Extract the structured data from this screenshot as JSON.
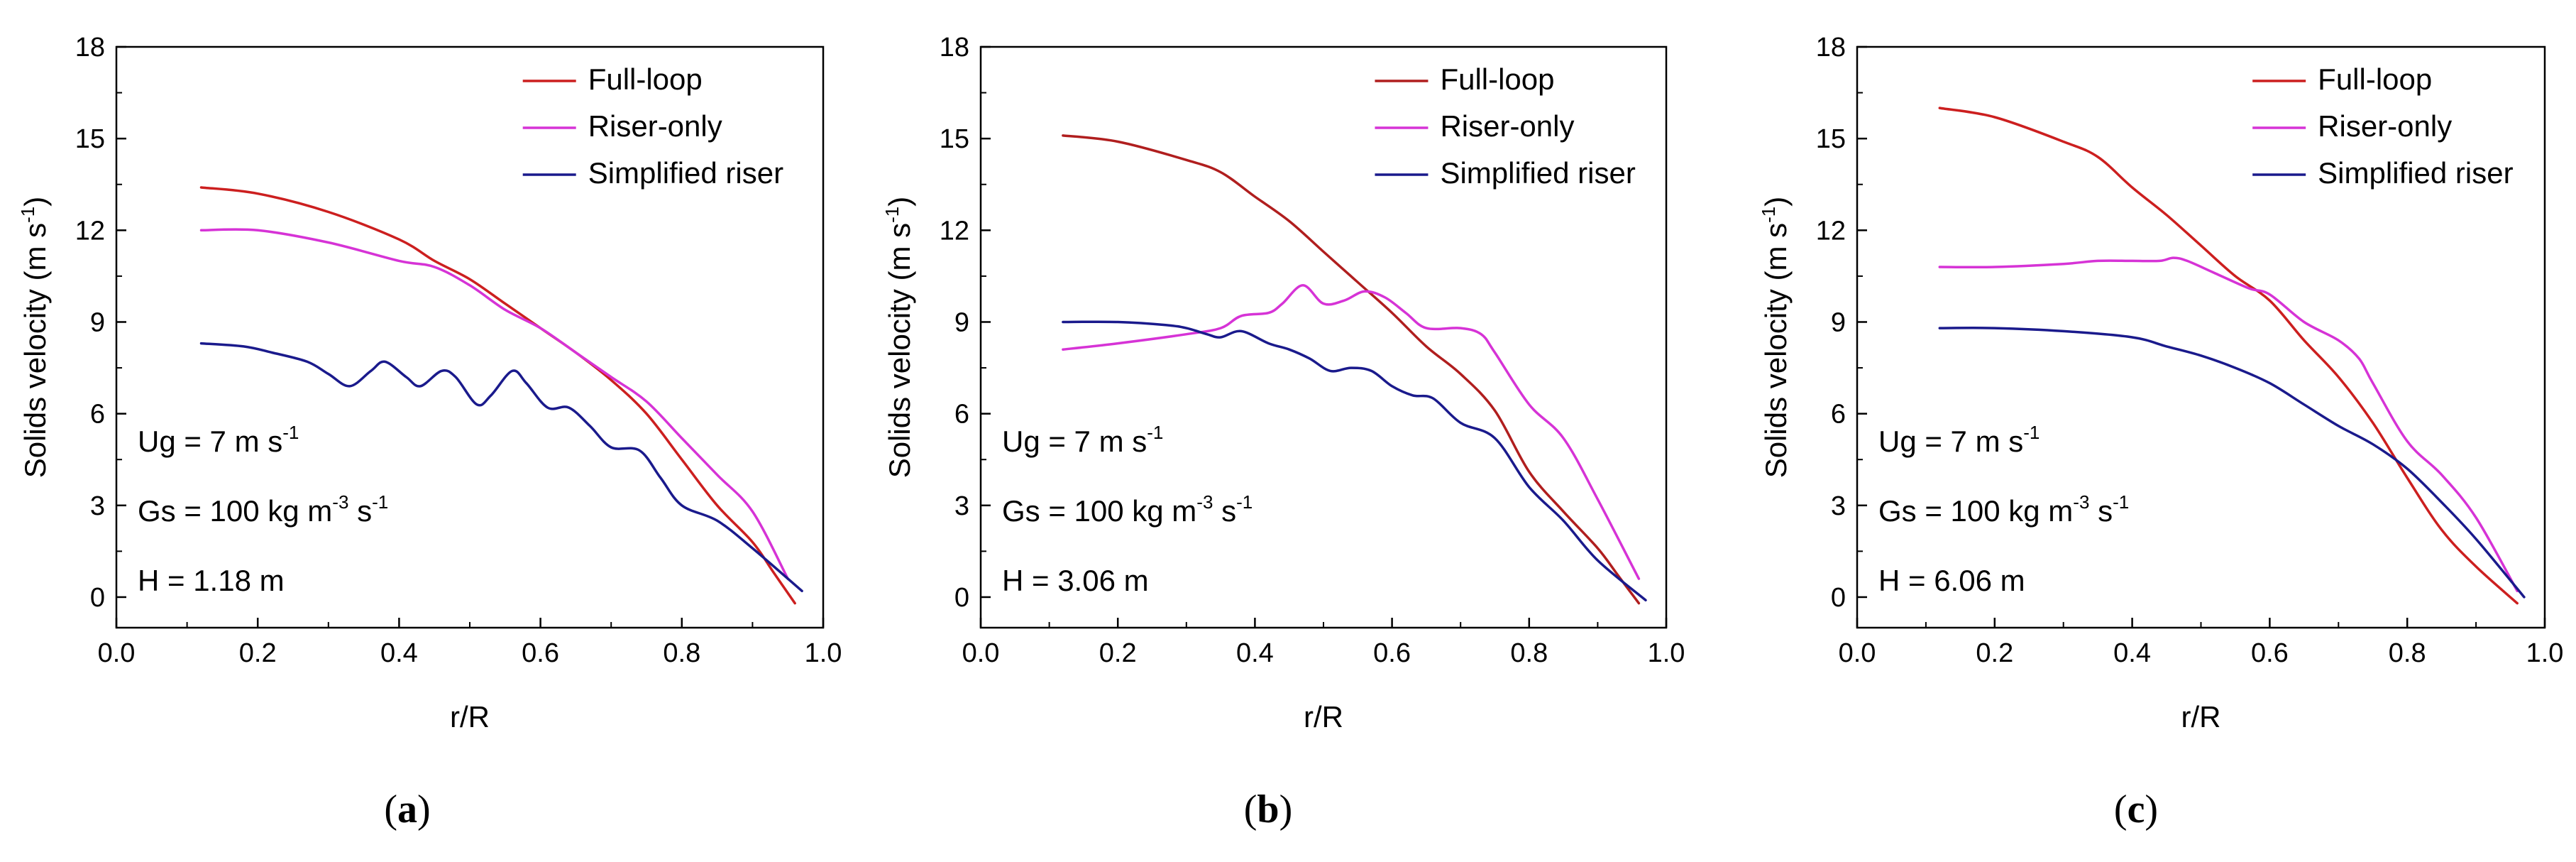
{
  "chart_data": [
    {
      "type": "line",
      "caption": {
        "open": "(",
        "letter": "a",
        "close": ")"
      },
      "xlabel": "r/R",
      "ylabel": {
        "main": "Solids velocity (m s",
        "sup": "-1",
        "close": ")"
      },
      "xlim": [
        0.0,
        1.0
      ],
      "ylim": [
        -1,
        18
      ],
      "xticks": [
        "0.0",
        "0.2",
        "0.4",
        "0.6",
        "0.8",
        "1.0"
      ],
      "yticks": [
        "0",
        "3",
        "6",
        "9",
        "12",
        "15",
        "18"
      ],
      "annotations": [
        {
          "main": "Ug = 7 m s",
          "sup": "-1",
          "rest": ""
        },
        {
          "main": "Gs = 100 kg m",
          "sup": "-3",
          "rest": " s",
          "sup2": "-1"
        },
        {
          "main": "H = 1.18 m",
          "sup": "",
          "rest": ""
        }
      ],
      "series": [
        {
          "name": "Full-loop",
          "color": "#cc1f1f",
          "x": [
            0.12,
            0.2,
            0.3,
            0.4,
            0.45,
            0.5,
            0.55,
            0.6,
            0.65,
            0.7,
            0.75,
            0.8,
            0.85,
            0.9,
            0.93,
            0.96
          ],
          "y": [
            13.4,
            13.2,
            12.6,
            11.7,
            11.0,
            10.4,
            9.6,
            8.8,
            8.0,
            7.1,
            6.0,
            4.5,
            3.0,
            1.8,
            0.8,
            -0.2
          ]
        },
        {
          "name": "Riser-only",
          "color": "#d633d6",
          "x": [
            0.12,
            0.2,
            0.3,
            0.4,
            0.45,
            0.5,
            0.55,
            0.6,
            0.65,
            0.7,
            0.75,
            0.8,
            0.85,
            0.9,
            0.95
          ],
          "y": [
            12.0,
            12.0,
            11.6,
            11.0,
            10.8,
            10.2,
            9.4,
            8.8,
            8.0,
            7.2,
            6.4,
            5.2,
            4.0,
            2.8,
            0.6
          ]
        },
        {
          "name": "Simplified riser",
          "color": "#1a1a8c",
          "x": [
            0.12,
            0.18,
            0.22,
            0.27,
            0.3,
            0.33,
            0.36,
            0.38,
            0.41,
            0.43,
            0.46,
            0.48,
            0.51,
            0.53,
            0.56,
            0.58,
            0.61,
            0.64,
            0.67,
            0.7,
            0.74,
            0.77,
            0.8,
            0.85,
            0.9,
            0.97
          ],
          "y": [
            8.3,
            8.2,
            8.0,
            7.7,
            7.3,
            6.9,
            7.4,
            7.7,
            7.2,
            6.9,
            7.4,
            7.2,
            6.3,
            6.6,
            7.4,
            7.0,
            6.2,
            6.2,
            5.6,
            4.9,
            4.8,
            3.9,
            3.0,
            2.5,
            1.6,
            0.2
          ]
        }
      ]
    },
    {
      "type": "line",
      "caption": {
        "open": "(",
        "letter": "b",
        "close": ")"
      },
      "xlabel": "r/R",
      "ylabel": {
        "main": "Solids velocity (m s",
        "sup": "-1",
        "close": ")"
      },
      "xlim": [
        0.0,
        1.0
      ],
      "ylim": [
        -1,
        18
      ],
      "xticks": [
        "0.0",
        "0.2",
        "0.4",
        "0.6",
        "0.8",
        "1.0"
      ],
      "yticks": [
        "0",
        "3",
        "6",
        "9",
        "12",
        "15",
        "18"
      ],
      "annotations": [
        {
          "main": "Ug = 7 m s",
          "sup": "-1",
          "rest": ""
        },
        {
          "main": "Gs = 100 kg m",
          "sup": "-3",
          "rest": " s",
          "sup2": "-1"
        },
        {
          "main": "H = 3.06 m",
          "sup": "",
          "rest": ""
        }
      ],
      "series": [
        {
          "name": "Full-loop",
          "color": "#b01e1e",
          "x": [
            0.12,
            0.2,
            0.3,
            0.35,
            0.4,
            0.45,
            0.5,
            0.55,
            0.6,
            0.65,
            0.7,
            0.75,
            0.8,
            0.85,
            0.9,
            0.93,
            0.96
          ],
          "y": [
            15.1,
            14.9,
            14.3,
            13.9,
            13.1,
            12.3,
            11.3,
            10.3,
            9.3,
            8.2,
            7.3,
            6.1,
            4.1,
            2.8,
            1.6,
            0.7,
            -0.2
          ]
        },
        {
          "name": "Riser-only",
          "color": "#d633d6",
          "x": [
            0.12,
            0.2,
            0.3,
            0.35,
            0.38,
            0.42,
            0.44,
            0.47,
            0.5,
            0.53,
            0.56,
            0.59,
            0.62,
            0.65,
            0.7,
            0.73,
            0.75,
            0.8,
            0.85,
            0.9,
            0.96
          ],
          "y": [
            8.1,
            8.3,
            8.6,
            8.8,
            9.2,
            9.3,
            9.6,
            10.2,
            9.6,
            9.7,
            10.0,
            9.8,
            9.3,
            8.8,
            8.8,
            8.6,
            8.0,
            6.3,
            5.2,
            3.2,
            0.6
          ]
        },
        {
          "name": "Simplified riser",
          "color": "#1a1a8c",
          "x": [
            0.12,
            0.2,
            0.27,
            0.3,
            0.33,
            0.35,
            0.38,
            0.42,
            0.45,
            0.48,
            0.51,
            0.54,
            0.57,
            0.6,
            0.63,
            0.66,
            0.7,
            0.75,
            0.8,
            0.85,
            0.9,
            0.97
          ],
          "y": [
            9.0,
            9.0,
            8.9,
            8.8,
            8.6,
            8.5,
            8.7,
            8.3,
            8.1,
            7.8,
            7.4,
            7.5,
            7.4,
            6.9,
            6.6,
            6.5,
            5.7,
            5.2,
            3.6,
            2.5,
            1.2,
            -0.1
          ]
        }
      ]
    },
    {
      "type": "line",
      "caption": {
        "open": "(",
        "letter": "c",
        "close": ")"
      },
      "xlabel": "r/R",
      "ylabel": {
        "main": "Solids velocity (m s",
        "sup": "-1",
        "close": ")"
      },
      "xlim": [
        0.0,
        1.0
      ],
      "ylim": [
        -1,
        18
      ],
      "xticks": [
        "0.0",
        "0.2",
        "0.4",
        "0.6",
        "0.8",
        "1.0"
      ],
      "yticks": [
        "0",
        "3",
        "6",
        "9",
        "12",
        "15",
        "18"
      ],
      "annotations": [
        {
          "main": "Ug = 7 m s",
          "sup": "-1",
          "rest": ""
        },
        {
          "main": "Gs = 100 kg m",
          "sup": "-3",
          "rest": " s",
          "sup2": "-1"
        },
        {
          "main": "H = 6.06 m",
          "sup": "",
          "rest": ""
        }
      ],
      "series": [
        {
          "name": "Full-loop",
          "color": "#cc1f1f",
          "x": [
            0.12,
            0.2,
            0.3,
            0.35,
            0.4,
            0.45,
            0.5,
            0.55,
            0.6,
            0.65,
            0.7,
            0.75,
            0.8,
            0.85,
            0.9,
            0.96
          ],
          "y": [
            16.0,
            15.7,
            14.9,
            14.4,
            13.4,
            12.5,
            11.5,
            10.5,
            9.7,
            8.4,
            7.2,
            5.7,
            3.9,
            2.2,
            1.0,
            -0.2
          ]
        },
        {
          "name": "Riser-only",
          "color": "#d633d6",
          "x": [
            0.12,
            0.2,
            0.3,
            0.35,
            0.4,
            0.44,
            0.46,
            0.48,
            0.52,
            0.57,
            0.6,
            0.65,
            0.7,
            0.73,
            0.75,
            0.8,
            0.85,
            0.9,
            0.96
          ],
          "y": [
            10.8,
            10.8,
            10.9,
            11.0,
            11.0,
            11.0,
            11.1,
            11.0,
            10.6,
            10.1,
            9.9,
            9.0,
            8.4,
            7.8,
            7.0,
            5.1,
            4.0,
            2.6,
            0.2
          ]
        },
        {
          "name": "Simplified riser",
          "color": "#1a1a8c",
          "x": [
            0.12,
            0.2,
            0.3,
            0.4,
            0.45,
            0.5,
            0.55,
            0.6,
            0.65,
            0.7,
            0.75,
            0.8,
            0.85,
            0.9,
            0.97
          ],
          "y": [
            8.8,
            8.8,
            8.7,
            8.5,
            8.2,
            7.9,
            7.5,
            7.0,
            6.3,
            5.6,
            5.0,
            4.2,
            3.1,
            1.9,
            0.0
          ]
        }
      ]
    }
  ]
}
